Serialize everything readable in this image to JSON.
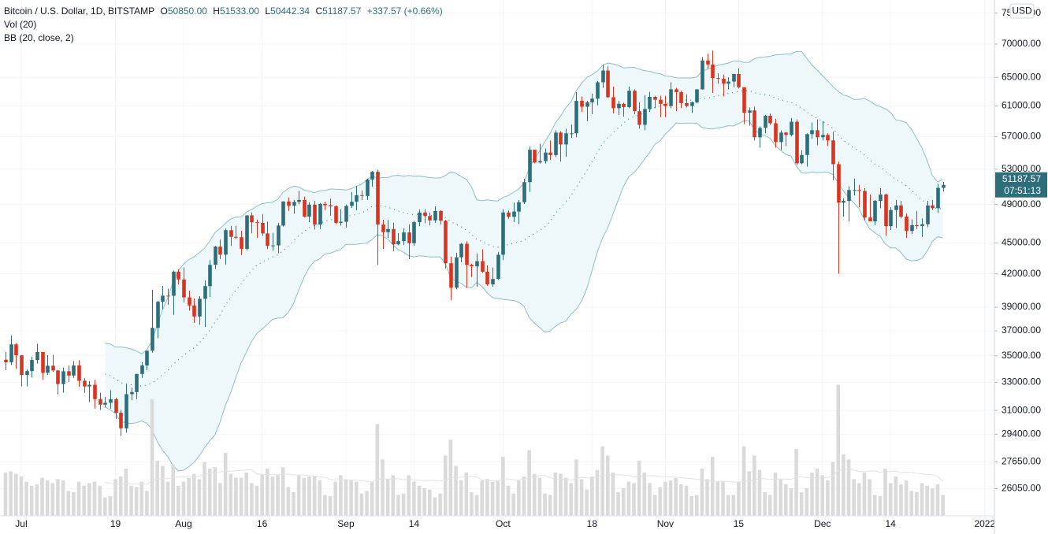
{
  "chart_data": {
    "type": "candlestick",
    "title": "Bitcoin / U.S. Dollar, 1D, BITSTAMP",
    "quote": [
      [
        "O",
        "50850.00"
      ],
      [
        "H",
        "51533.00"
      ],
      [
        "L",
        "50442.34"
      ],
      [
        "C",
        "51187.57"
      ]
    ],
    "change": "+337.57 (+0.66%)",
    "indicators": [
      "Vol (20)",
      "BB (20, close, 2)"
    ],
    "currency": "USD",
    "last_price_label": "51187.57",
    "countdown": "07:51:13",
    "up_color": "#2e6e7b",
    "down_color": "#d8341f",
    "volume_color": "#dadada",
    "volume_ma_color": "#e2e2e2",
    "volume_ma_period": 20,
    "bollinger": {
      "period": 20,
      "mult": 2,
      "line_color": "#8fbfc8",
      "fill": "#eef7f9",
      "basis_color": "#3f8f99"
    },
    "log_scale": true,
    "grid": true,
    "ylim": [
      24520,
      77210
    ],
    "yticks": [
      {
        "value": 26050,
        "label": "26050.00"
      },
      {
        "value": 27650,
        "label": "27650.00"
      },
      {
        "value": 29400,
        "label": "29400.00"
      },
      {
        "value": 31000,
        "label": "31000.00"
      },
      {
        "value": 33000,
        "label": "33000.00"
      },
      {
        "value": 35000,
        "label": "35000.00"
      },
      {
        "value": 37000,
        "label": "37000.00"
      },
      {
        "value": 39000,
        "label": "39000.00"
      },
      {
        "value": 42000,
        "label": "42000.00"
      },
      {
        "value": 45000,
        "label": "45000.00"
      },
      {
        "value": 49000,
        "label": "49000.00"
      },
      {
        "value": 53000,
        "label": "53000.00"
      },
      {
        "value": 57000,
        "label": "57000.00"
      },
      {
        "value": 61000,
        "label": "61000.00"
      },
      {
        "value": 65000,
        "label": "65000.00"
      },
      {
        "value": 70000,
        "label": "70000.00"
      },
      {
        "value": 75000,
        "label": "75000.00"
      }
    ],
    "volume_ylim": [
      0,
      12000
    ],
    "categories": [
      null,
      null,
      null,
      "Jul",
      null,
      null,
      null,
      null,
      null,
      null,
      null,
      null,
      null,
      null,
      null,
      null,
      null,
      null,
      null,
      null,
      null,
      "19",
      null,
      null,
      null,
      null,
      null,
      null,
      null,
      null,
      null,
      null,
      null,
      null,
      "Aug",
      null,
      null,
      null,
      null,
      null,
      null,
      null,
      null,
      null,
      null,
      null,
      null,
      null,
      null,
      "16",
      null,
      null,
      null,
      null,
      null,
      null,
      null,
      null,
      null,
      null,
      null,
      null,
      null,
      null,
      null,
      "Sep",
      null,
      null,
      null,
      null,
      null,
      null,
      null,
      null,
      null,
      null,
      null,
      null,
      "14",
      null,
      null,
      null,
      null,
      null,
      null,
      null,
      null,
      null,
      null,
      null,
      null,
      null,
      null,
      null,
      null,
      "Oct",
      null,
      null,
      null,
      null,
      null,
      null,
      null,
      null,
      null,
      null,
      null,
      null,
      null,
      null,
      null,
      null,
      "18",
      null,
      null,
      null,
      null,
      null,
      null,
      null,
      null,
      null,
      null,
      null,
      null,
      null,
      "Nov",
      null,
      null,
      null,
      null,
      null,
      null,
      null,
      null,
      null,
      null,
      null,
      null,
      null,
      "15",
      null,
      null,
      null,
      null,
      null,
      null,
      null,
      null,
      null,
      null,
      null,
      null,
      null,
      null,
      null,
      "Dec",
      null,
      null,
      null,
      null,
      null,
      null,
      null,
      null,
      null,
      null,
      null,
      null,
      "14",
      null,
      null,
      null,
      null,
      null,
      null,
      null,
      null,
      null,
      null,
      null,
      null,
      null,
      null,
      null,
      null,
      null,
      "2022"
    ],
    "open": [
      34700,
      34500,
      35900,
      35040,
      33540,
      33830,
      34680,
      35300,
      33700,
      34240,
      33880,
      32870,
      33820,
      33500,
      34260,
      33110,
      32700,
      32820,
      31790,
      31400,
      31530,
      31780,
      30840,
      29790,
      32140,
      32290,
      33620,
      34260,
      35400,
      37250,
      39470,
      40010,
      40000,
      42200,
      41480,
      39860,
      39150,
      38200,
      39730,
      40870,
      42850,
      44620,
      43830,
      46280,
      45600,
      45560,
      44400,
      47830,
      47100,
      47040,
      45950,
      44690,
      44740,
      46760,
      49330,
      48870,
      49280,
      49500,
      47700,
      48990,
      46860,
      49070,
      48920,
      48800,
      47050,
      47160,
      48850,
      49300,
      50030,
      49940,
      51800,
      52700,
      46860,
      46080,
      46400,
      44850,
      45170,
      46050,
      44960,
      47110,
      48140,
      47760,
      47300,
      48300,
      47260,
      43000,
      40720,
      43570,
      44900,
      42840,
      42700,
      43200,
      42200,
      41030,
      41520,
      43820,
      48140,
      47670,
      48240,
      49250,
      51500,
      55340,
      53800,
      53970,
      55000,
      54700,
      57500,
      56000,
      57400,
      57400,
      61700,
      60900,
      61500,
      62000,
      64300,
      66000,
      62200,
      60700,
      61300,
      60850,
      63100,
      60300,
      58500,
      60600,
      62250,
      61850,
      61300,
      61000,
      63300,
      62900,
      61400,
      61000,
      61500,
      63300,
      67500,
      66900,
      64900,
      64800,
      64100,
      64400,
      65500,
      63600,
      60100,
      60400,
      56900,
      58100,
      59700,
      58700,
      56300,
      57500,
      57200,
      58900,
      53700,
      54700,
      57300,
      57800,
      56900,
      57200,
      56500,
      53600,
      49200,
      49400,
      50600,
      50600,
      50500,
      47600,
      47200,
      49400,
      50100,
      46700,
      48400,
      48900,
      47700,
      46200,
      46800,
      46700,
      46900,
      48900,
      48600,
      50850,
      null,
      null,
      null,
      null,
      null,
      null,
      null,
      null
    ],
    "high": [
      35300,
      36600,
      36000,
      35060,
      33970,
      34930,
      35960,
      35300,
      35050,
      35080,
      33920,
      34100,
      34260,
      34600,
      34670,
      33330,
      33100,
      33180,
      32250,
      31950,
      32420,
      31900,
      31040,
      32860,
      32600,
      33630,
      34500,
      35400,
      40550,
      39540,
      40890,
      40640,
      42300,
      42410,
      42600,
      40450,
      39770,
      39970,
      41400,
      43300,
      44700,
      45330,
      46450,
      46700,
      46740,
      46210,
      47850,
      48140,
      47380,
      47960,
      47170,
      46000,
      47060,
      49350,
      49770,
      49500,
      50500,
      49870,
      49260,
      49390,
      49170,
      49300,
      49650,
      48900,
      48500,
      49000,
      50380,
      51050,
      50560,
      51900,
      52800,
      52950,
      47370,
      47350,
      47050,
      45980,
      46460,
      46880,
      47250,
      48470,
      48500,
      48150,
      48800,
      48370,
      47350,
      43640,
      44000,
      44980,
      45160,
      42960,
      43940,
      44350,
      42790,
      42600,
      44110,
      48500,
      48340,
      49200,
      49500,
      51900,
      55750,
      55350,
      56100,
      55500,
      56500,
      57800,
      57680,
      58000,
      58530,
      62900,
      62300,
      61700,
      62700,
      64450,
      66900,
      66600,
      63700,
      61700,
      61450,
      63700,
      63300,
      61500,
      62500,
      62950,
      62400,
      62400,
      62400,
      64300,
      63500,
      63100,
      62600,
      61600,
      63300,
      68000,
      68500,
      69000,
      65600,
      65400,
      65000,
      65500,
      66300,
      63600,
      60800,
      60900,
      58300,
      59800,
      60000,
      59300,
      57800,
      57600,
      59400,
      59200,
      55300,
      57400,
      58800,
      59200,
      59000,
      57400,
      57600,
      53900,
      49700,
      51000,
      51900,
      51200,
      50800,
      50100,
      49500,
      50800,
      50200,
      48700,
      49500,
      49400,
      48000,
      47400,
      48300,
      47500,
      49400,
      49500,
      51300,
      51533,
      null,
      null,
      null,
      null,
      null,
      null,
      null,
      null
    ],
    "low": [
      33900,
      34300,
      34000,
      32700,
      32700,
      33350,
      34400,
      33180,
      33550,
      33770,
      32120,
      32250,
      33020,
      33320,
      32680,
      32230,
      31600,
      31130,
      31030,
      31200,
      31130,
      30420,
      29300,
      29500,
      31710,
      31790,
      33330,
      33900,
      35250,
      36400,
      38800,
      39220,
      38330,
      41020,
      39420,
      38700,
      37660,
      37500,
      37330,
      39880,
      42450,
      43400,
      42870,
      44700,
      45360,
      43800,
      44250,
      45970,
      45500,
      45700,
      44390,
      44220,
      43960,
      46650,
      48300,
      48000,
      49030,
      47600,
      47100,
      46350,
      46400,
      48380,
      47800,
      46900,
      46750,
      46550,
      48630,
      48380,
      49480,
      49500,
      50980,
      42830,
      44400,
      45500,
      44150,
      44750,
      44770,
      43400,
      44700,
      46680,
      47000,
      46800,
      47060,
      46870,
      42500,
      39600,
      40580,
      43100,
      40700,
      41700,
      40800,
      42100,
      40900,
      40800,
      41440,
      43300,
      47460,
      47130,
      46900,
      49060,
      50400,
      53700,
      53670,
      53680,
      54100,
      54450,
      53900,
      54500,
      56800,
      56900,
      60200,
      58960,
      59900,
      61100,
      63500,
      62100,
      60000,
      59800,
      59600,
      60700,
      59900,
      58000,
      57800,
      60200,
      60700,
      59500,
      59500,
      60700,
      60300,
      60700,
      60800,
      60100,
      61400,
      63250,
      66300,
      62800,
      64100,
      62300,
      63300,
      63600,
      63400,
      58600,
      58400,
      56500,
      55600,
      57400,
      58500,
      55600,
      55300,
      55800,
      57000,
      53500,
      53600,
      53300,
      56700,
      55900,
      56500,
      55800,
      51700,
      42000,
      47700,
      47200,
      50000,
      48700,
      47300,
      47300,
      46800,
      48600,
      45700,
      46300,
      46500,
      47500,
      45500,
      45900,
      46400,
      45600,
      46600,
      48400,
      48100,
      50442.34,
      null,
      null,
      null,
      null,
      null,
      null,
      null,
      null
    ],
    "close": [
      34500,
      35900,
      35040,
      33540,
      33830,
      34680,
      35300,
      33700,
      34240,
      33880,
      32870,
      33820,
      33500,
      34260,
      33110,
      32700,
      32820,
      31790,
      31400,
      31530,
      31780,
      30840,
      29790,
      32140,
      32290,
      33620,
      34260,
      35400,
      37250,
      39470,
      40010,
      40000,
      42200,
      41480,
      39860,
      39150,
      38200,
      39730,
      40870,
      42850,
      44620,
      43830,
      46280,
      45600,
      45560,
      44400,
      47830,
      47100,
      47040,
      45950,
      44690,
      44740,
      46760,
      49330,
      48870,
      49280,
      49500,
      47700,
      48990,
      46860,
      49070,
      48920,
      48800,
      47050,
      47160,
      48850,
      49300,
      50030,
      49940,
      51800,
      52700,
      46860,
      46080,
      46400,
      44850,
      45170,
      46050,
      44960,
      47110,
      48140,
      47760,
      47300,
      48300,
      47260,
      43000,
      40720,
      43570,
      44900,
      42840,
      42700,
      43200,
      42200,
      41030,
      41520,
      43820,
      48140,
      47670,
      48240,
      49250,
      51500,
      55340,
      53800,
      53970,
      55000,
      54700,
      57500,
      56000,
      57400,
      57400,
      61700,
      60900,
      61500,
      62000,
      64300,
      66000,
      62200,
      60700,
      61300,
      60850,
      63100,
      60300,
      58500,
      60600,
      62250,
      61850,
      61300,
      61000,
      63300,
      62900,
      61400,
      61000,
      61500,
      63300,
      67500,
      66900,
      64900,
      64800,
      64100,
      64400,
      65500,
      63600,
      60100,
      60400,
      56900,
      58100,
      59700,
      58700,
      56300,
      57500,
      57200,
      58900,
      53700,
      54700,
      57300,
      57800,
      56900,
      57200,
      56500,
      53600,
      49200,
      49400,
      50600,
      50600,
      50500,
      47600,
      47200,
      49400,
      50100,
      46700,
      48400,
      48900,
      47700,
      46200,
      46800,
      46700,
      46900,
      48900,
      48600,
      50850,
      51187.57,
      null,
      null,
      null,
      null,
      null,
      null,
      null,
      null
    ],
    "volume": [
      3300,
      3400,
      3200,
      3000,
      2600,
      2300,
      2400,
      2900,
      2700,
      2500,
      2800,
      2700,
      1900,
      1800,
      2600,
      2300,
      2500,
      2600,
      2300,
      1400,
      1500,
      2800,
      3000,
      3600,
      2300,
      2200,
      2600,
      1900,
      8900,
      4200,
      3800,
      2600,
      3900,
      2300,
      2600,
      2900,
      3200,
      2800,
      4100,
      3600,
      3700,
      2500,
      4800,
      3200,
      2900,
      2900,
      3300,
      2500,
      2300,
      3200,
      3600,
      3000,
      3100,
      3700,
      2200,
      1800,
      3100,
      2900,
      3000,
      3000,
      2700,
      1600,
      1500,
      2600,
      3100,
      2800,
      2700,
      2600,
      1700,
      1900,
      2600,
      7000,
      4300,
      2800,
      3100,
      1600,
      1700,
      3100,
      2600,
      2300,
      2100,
      2000,
      1400,
      1700,
      4600,
      5800,
      3800,
      2700,
      3300,
      1800,
      1600,
      2700,
      2800,
      2600,
      2700,
      4500,
      2300,
      1700,
      2700,
      3000,
      5000,
      3200,
      2900,
      1700,
      1600,
      3300,
      3200,
      2900,
      2500,
      4300,
      2800,
      2000,
      3000,
      3500,
      5300,
      4600,
      3300,
      1800,
      2100,
      2600,
      2500,
      4200,
      3300,
      2500,
      1600,
      2200,
      2600,
      2700,
      2900,
      2400,
      2300,
      1500,
      1600,
      3600,
      2800,
      4500,
      2600,
      2600,
      1600,
      1600,
      2600,
      5300,
      3400,
      4600,
      3500,
      1800,
      1600,
      3300,
      2800,
      2400,
      2100,
      5100,
      1800,
      2100,
      3300,
      3600,
      3100,
      2700,
      4100,
      10000,
      4700,
      4300,
      2800,
      2500,
      3300,
      2800,
      1600,
      1500,
      3600,
      2500,
      3000,
      2400,
      2700,
      1900,
      1800,
      2500,
      2300,
      2100,
      2400,
      1600,
      null,
      null,
      null,
      null,
      null,
      null,
      null,
      null
    ]
  }
}
